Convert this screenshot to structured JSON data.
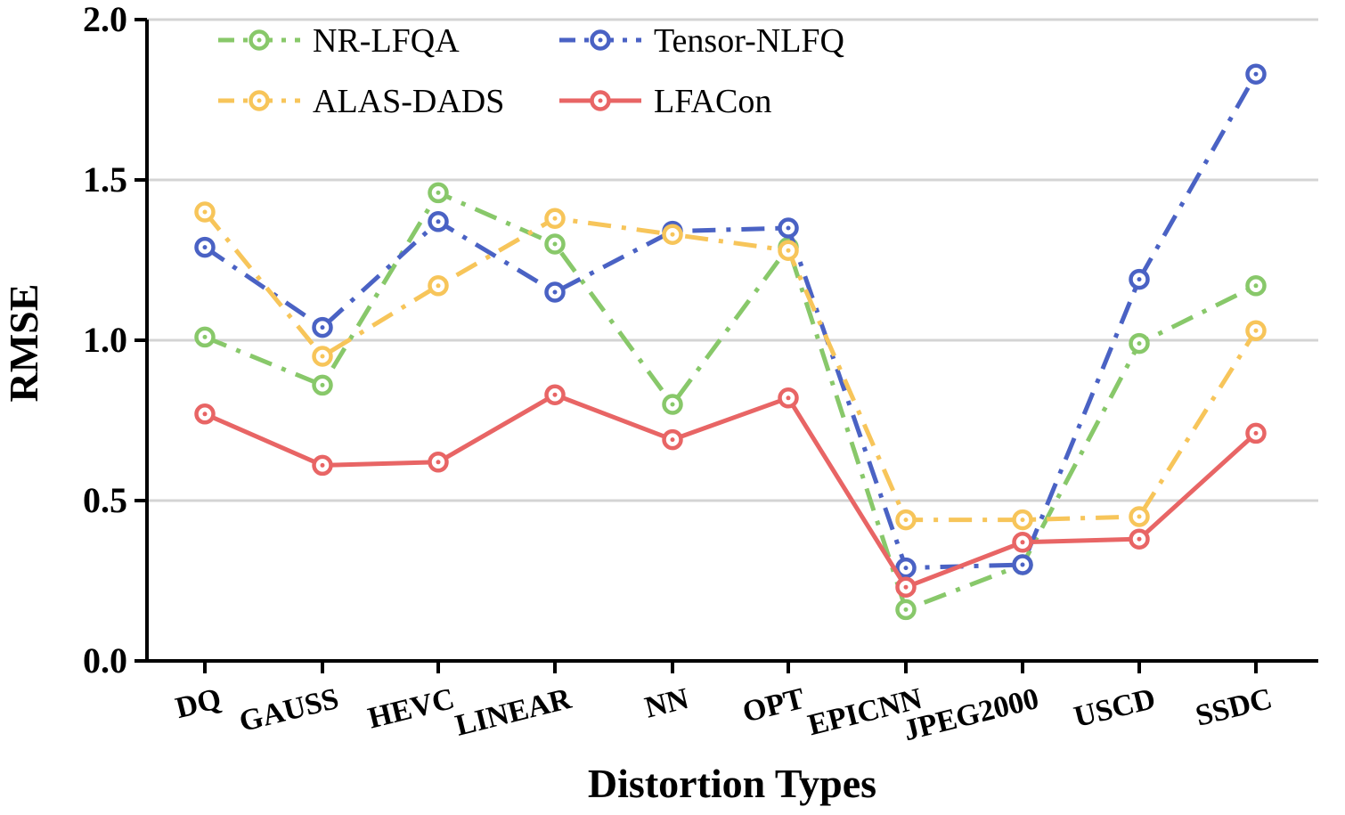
{
  "chart_data": {
    "type": "line",
    "xlabel": "Distortion Types",
    "ylabel": "RMSE",
    "ylim": [
      0,
      2.0
    ],
    "yticks": [
      "0.0",
      "0.5",
      "1.0",
      "1.5",
      "2.0"
    ],
    "grid": "horizontal",
    "legend_position": "top-left",
    "categories": [
      "DQ",
      "GAUSS",
      "HEVC",
      "LINEAR",
      "NN",
      "OPT",
      "EPICNN",
      "JPEG2000",
      "USCD",
      "SSDC"
    ],
    "series": [
      {
        "name": "NR-LFQA",
        "color": "#88c86a",
        "line_style": "dash-dot",
        "values": [
          1.01,
          0.86,
          1.46,
          1.3,
          0.8,
          1.29,
          0.16,
          0.3,
          0.99,
          1.17
        ]
      },
      {
        "name": "Tensor-NLFQ",
        "color": "#4a62c4",
        "line_style": "dash-dot",
        "values": [
          1.29,
          1.04,
          1.37,
          1.15,
          1.34,
          1.35,
          0.29,
          0.3,
          1.19,
          1.83
        ]
      },
      {
        "name": "ALAS-DADS",
        "color": "#f7c55a",
        "line_style": "dash-dot",
        "values": [
          1.4,
          0.95,
          1.17,
          1.38,
          1.33,
          1.28,
          0.44,
          0.44,
          0.45,
          1.03
        ]
      },
      {
        "name": "LFACon",
        "color": "#e86565",
        "line_style": "solid",
        "values": [
          0.77,
          0.61,
          0.62,
          0.83,
          0.69,
          0.82,
          0.23,
          0.37,
          0.38,
          0.71
        ]
      }
    ]
  }
}
